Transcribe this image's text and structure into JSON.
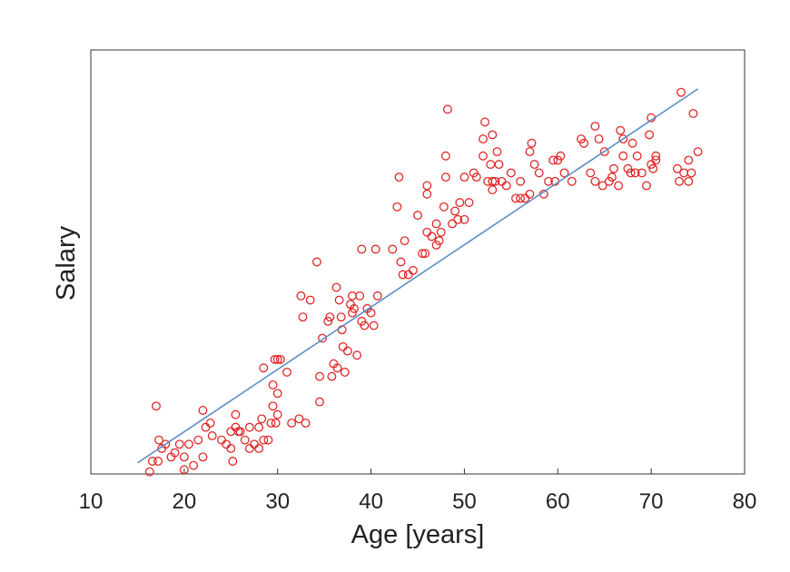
{
  "chart_data": {
    "type": "scatter",
    "x_label": "Age [years]",
    "y_label": "Salary",
    "xlim": [
      10,
      80
    ],
    "xticks": [
      10,
      20,
      30,
      40,
      50,
      60,
      70,
      80
    ],
    "ylim": [
      0,
      100
    ],
    "series": [
      {
        "type": "scatter",
        "color": "#e02828",
        "x": [
          16.3,
          16.6,
          17,
          17.2,
          17.3,
          17.6,
          18,
          18.6,
          19,
          19.5,
          20,
          20,
          20.5,
          21,
          21.5,
          22,
          22,
          22.3,
          22.8,
          23,
          24,
          24.5,
          25,
          25,
          25.2,
          25.5,
          25.5,
          25.8,
          26,
          26.5,
          27,
          27,
          27.5,
          28,
          28,
          28.3,
          28.5,
          29,
          29.3,
          29.5,
          29.8,
          30,
          30,
          29.5,
          28.5,
          29.7,
          30,
          30.3,
          31,
          31.5,
          32.3,
          33,
          32.5,
          32.7,
          33.5,
          34.2,
          34.5,
          34.5,
          34.8,
          35.4,
          35.6,
          35.8,
          36,
          36.3,
          36.4,
          36.6,
          36.8,
          36.9,
          37,
          37.2,
          37.5,
          37.8,
          38,
          38,
          38.2,
          38.5,
          38.8,
          39,
          39,
          39.3,
          39.6,
          40,
          40.3,
          40.5,
          40.7,
          42.3,
          42.8,
          43,
          43.2,
          43.4,
          43.6,
          44,
          44.5,
          45,
          45.5,
          45.8,
          46,
          46,
          46,
          46.5,
          47,
          47,
          47.3,
          47.5,
          47.8,
          48,
          48,
          48.2,
          48.7,
          49,
          49.3,
          49.5,
          50,
          50,
          50.5,
          51,
          51.3,
          52,
          52,
          52.2,
          52.5,
          52.8,
          53,
          53,
          53,
          53.3,
          53.5,
          53.7,
          54,
          54.5,
          55,
          55.5,
          56,
          56,
          56.5,
          57,
          57,
          57.2,
          57.5,
          58,
          58.5,
          59,
          59.5,
          59.7,
          60,
          60.3,
          60.7,
          61.5,
          62.5,
          62.8,
          63.5,
          64,
          64,
          64.4,
          64.8,
          65,
          65.5,
          65.8,
          66,
          66.5,
          66.7,
          67,
          67,
          67.5,
          67.8,
          68,
          68.3,
          68.5,
          69,
          69.5,
          69.8,
          70,
          70,
          70.2,
          70.5,
          70.5,
          72.8,
          73,
          73.2,
          73.5,
          74,
          74,
          74.3,
          74.5,
          75
        ],
        "values": [
          0.5,
          3,
          16,
          3,
          8,
          6,
          7,
          4,
          5,
          7,
          1,
          4,
          7,
          2,
          8,
          15,
          4,
          11,
          12,
          9,
          8,
          7,
          10,
          6,
          3,
          11,
          14,
          10,
          10,
          8,
          11,
          6,
          7,
          6,
          11,
          13,
          8,
          8,
          12,
          16,
          12,
          19,
          14,
          21,
          25,
          27,
          27,
          27,
          24,
          12,
          13,
          12,
          42,
          37,
          41,
          50,
          23,
          17,
          32,
          36,
          37,
          23,
          26,
          44,
          25,
          41,
          37,
          34,
          30,
          24,
          29,
          40,
          38,
          42,
          39,
          28,
          42,
          36,
          53,
          35,
          39,
          38,
          35,
          53,
          42,
          53,
          63,
          70,
          50,
          47,
          55,
          47,
          48,
          61,
          52,
          52,
          57,
          66,
          68,
          56,
          54,
          59,
          55,
          57,
          63,
          70,
          75,
          86,
          59,
          62,
          60,
          64,
          60,
          70,
          64,
          71,
          70,
          75,
          79,
          83,
          69,
          73,
          67,
          69,
          80,
          69,
          76,
          73,
          69,
          68,
          71,
          65,
          69,
          65,
          65,
          66,
          76,
          78,
          73,
          71,
          66,
          69,
          74,
          69,
          74,
          75,
          71,
          69,
          79,
          78,
          71,
          69,
          82,
          79,
          68,
          76,
          69,
          70,
          72,
          68,
          81,
          75,
          79,
          72,
          71,
          78,
          71,
          75,
          71,
          68,
          80,
          73,
          84,
          72,
          75,
          74,
          72,
          69,
          90,
          71,
          69,
          74,
          71,
          85,
          76
        ]
      },
      {
        "type": "line",
        "color": "#5b8fc7",
        "x": [
          15,
          75
        ],
        "values": [
          2.6,
          90.8
        ]
      }
    ]
  }
}
